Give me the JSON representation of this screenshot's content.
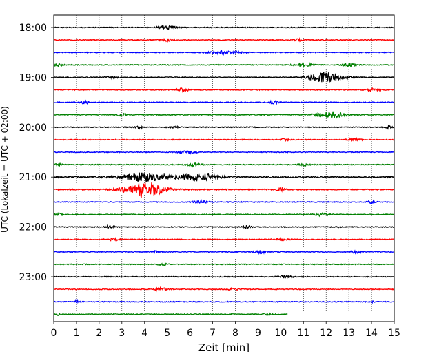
{
  "chart_data": {
    "type": "line",
    "subtype": "helicorder",
    "title": "",
    "xlabel": "Zeit  [min]",
    "ylabel": "UTC (Lokalzeit = UTC + 02:00)",
    "xlim": [
      0,
      15
    ],
    "x_ticks": [
      0,
      1,
      2,
      3,
      4,
      5,
      6,
      7,
      8,
      9,
      10,
      11,
      12,
      13,
      14,
      15
    ],
    "grid": {
      "vertical": true,
      "style": "dotted"
    },
    "y_ticks": [
      {
        "label": "18:00",
        "trace_index": 0
      },
      {
        "label": "19:00",
        "trace_index": 4
      },
      {
        "label": "20:00",
        "trace_index": 8
      },
      {
        "label": "21:00",
        "trace_index": 12
      },
      {
        "label": "22:00",
        "trace_index": 16
      },
      {
        "label": "23:00",
        "trace_index": 20
      }
    ],
    "trace_interval_min": 15,
    "color_cycle": [
      "#000000",
      "#ff0000",
      "#0000ff",
      "#008000"
    ],
    "traces": [
      {
        "start": "18:00",
        "end_min": 15,
        "noise": 0.12,
        "events": [
          {
            "t": 5.0,
            "amp": 0.5,
            "width": 0.4
          }
        ]
      },
      {
        "start": "18:15",
        "end_min": 15,
        "noise": 0.12,
        "events": [
          {
            "t": 5.0,
            "amp": 0.35,
            "width": 0.3
          },
          {
            "t": 10.8,
            "amp": 0.35,
            "width": 0.2
          }
        ]
      },
      {
        "start": "18:30",
        "end_min": 15,
        "noise": 0.12,
        "events": [
          {
            "t": 7.5,
            "amp": 0.4,
            "width": 0.7
          }
        ]
      },
      {
        "start": "18:45",
        "end_min": 15,
        "noise": 0.12,
        "events": [
          {
            "t": 0.2,
            "amp": 0.4,
            "width": 0.15
          },
          {
            "t": 11.0,
            "amp": 0.5,
            "width": 0.4
          },
          {
            "t": 13.0,
            "amp": 0.4,
            "width": 0.3
          }
        ]
      },
      {
        "start": "19:00",
        "end_min": 15,
        "noise": 0.12,
        "events": [
          {
            "t": 2.5,
            "amp": 0.3,
            "width": 0.3
          },
          {
            "t": 12.0,
            "amp": 1.5,
            "width": 0.7
          }
        ]
      },
      {
        "start": "19:15",
        "end_min": 15,
        "noise": 0.12,
        "events": [
          {
            "t": 5.7,
            "amp": 0.45,
            "width": 0.3
          },
          {
            "t": 14.1,
            "amp": 0.4,
            "width": 0.3
          }
        ]
      },
      {
        "start": "19:30",
        "end_min": 15,
        "noise": 0.12,
        "events": [
          {
            "t": 1.4,
            "amp": 0.4,
            "width": 0.2
          },
          {
            "t": 9.7,
            "amp": 0.4,
            "width": 0.2
          }
        ]
      },
      {
        "start": "19:45",
        "end_min": 15,
        "noise": 0.12,
        "events": [
          {
            "t": 3.0,
            "amp": 0.3,
            "width": 0.2
          },
          {
            "t": 12.2,
            "amp": 0.9,
            "width": 0.6
          }
        ]
      },
      {
        "start": "20:00",
        "end_min": 15,
        "noise": 0.12,
        "events": [
          {
            "t": 3.7,
            "amp": 0.4,
            "width": 0.2
          },
          {
            "t": 5.3,
            "amp": 0.3,
            "width": 0.2
          },
          {
            "t": 14.8,
            "amp": 0.3,
            "width": 0.2
          }
        ]
      },
      {
        "start": "20:15",
        "end_min": 15,
        "noise": 0.12,
        "events": [
          {
            "t": 10.2,
            "amp": 0.3,
            "width": 0.2
          },
          {
            "t": 13.2,
            "amp": 0.45,
            "width": 0.3
          }
        ]
      },
      {
        "start": "20:30",
        "end_min": 15,
        "noise": 0.12,
        "events": [
          {
            "t": 5.9,
            "amp": 0.4,
            "width": 0.4
          }
        ]
      },
      {
        "start": "20:45",
        "end_min": 15,
        "noise": 0.12,
        "events": [
          {
            "t": 0.2,
            "amp": 0.3,
            "width": 0.15
          },
          {
            "t": 6.2,
            "amp": 0.5,
            "width": 0.3
          },
          {
            "t": 11.0,
            "amp": 0.3,
            "width": 0.2
          }
        ]
      },
      {
        "start": "21:00",
        "end_min": 15,
        "noise": 0.18,
        "events": [
          {
            "t": 4.0,
            "amp": 1.2,
            "width": 1.0
          },
          {
            "t": 6.3,
            "amp": 1.1,
            "width": 0.8
          }
        ]
      },
      {
        "start": "21:15",
        "end_min": 15,
        "noise": 0.15,
        "events": [
          {
            "t": 4.0,
            "amp": 2.1,
            "width": 0.9
          },
          {
            "t": 10.0,
            "amp": 0.4,
            "width": 0.2
          }
        ]
      },
      {
        "start": "21:30",
        "end_min": 15,
        "noise": 0.12,
        "events": [
          {
            "t": 6.5,
            "amp": 0.45,
            "width": 0.3
          },
          {
            "t": 14.0,
            "amp": 0.3,
            "width": 0.2
          }
        ]
      },
      {
        "start": "21:45",
        "end_min": 15,
        "noise": 0.12,
        "events": [
          {
            "t": 0.2,
            "amp": 0.4,
            "width": 0.15
          },
          {
            "t": 11.8,
            "amp": 0.4,
            "width": 0.3
          }
        ]
      },
      {
        "start": "22:00",
        "end_min": 15,
        "noise": 0.12,
        "events": [
          {
            "t": 2.5,
            "amp": 0.4,
            "width": 0.2
          },
          {
            "t": 8.5,
            "amp": 0.4,
            "width": 0.2
          },
          {
            "t": 12.5,
            "amp": 0.3,
            "width": 0.1
          }
        ]
      },
      {
        "start": "22:15",
        "end_min": 15,
        "noise": 0.12,
        "events": [
          {
            "t": 2.6,
            "amp": 0.4,
            "width": 0.3
          },
          {
            "t": 10.0,
            "amp": 0.4,
            "width": 0.3
          }
        ]
      },
      {
        "start": "22:30",
        "end_min": 15,
        "noise": 0.12,
        "events": [
          {
            "t": 4.5,
            "amp": 0.3,
            "width": 0.1
          },
          {
            "t": 9.1,
            "amp": 0.4,
            "width": 0.3
          },
          {
            "t": 13.3,
            "amp": 0.4,
            "width": 0.2
          }
        ]
      },
      {
        "start": "22:45",
        "end_min": 15,
        "noise": 0.12,
        "events": [
          {
            "t": 4.8,
            "amp": 0.3,
            "width": 0.2
          }
        ]
      },
      {
        "start": "23:00",
        "end_min": 15,
        "noise": 0.12,
        "events": [
          {
            "t": 10.2,
            "amp": 0.4,
            "width": 0.3
          }
        ]
      },
      {
        "start": "23:15",
        "end_min": 15,
        "noise": 0.12,
        "events": [
          {
            "t": 4.7,
            "amp": 0.4,
            "width": 0.3
          },
          {
            "t": 8.0,
            "amp": 0.3,
            "width": 0.3
          }
        ]
      },
      {
        "start": "23:30",
        "end_min": 15,
        "noise": 0.12,
        "events": [
          {
            "t": 1.0,
            "amp": 0.3,
            "width": 0.1
          },
          {
            "t": 14.0,
            "amp": 0.3,
            "width": 0.1
          }
        ]
      },
      {
        "start": "23:45",
        "end_min": 10.3,
        "noise": 0.12,
        "events": [
          {
            "t": 0.2,
            "amp": 0.3,
            "width": 0.1
          },
          {
            "t": 9.4,
            "amp": 0.25,
            "width": 0.2
          }
        ]
      }
    ]
  }
}
